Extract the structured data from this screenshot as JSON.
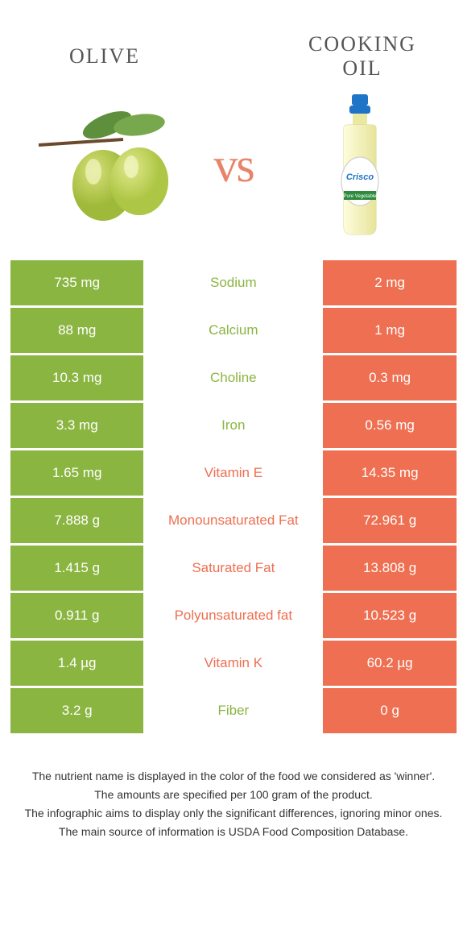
{
  "colors": {
    "left_bg": "#8bb541",
    "right_bg": "#ee6f51",
    "left_text": "#8bb541",
    "right_text": "#ee6f51",
    "vs": "#e8846a",
    "white": "#ffffff"
  },
  "header": {
    "left_title": "Olive",
    "right_title": "Cooking oil",
    "vs_label": "vs"
  },
  "rows": [
    {
      "left": "735 mg",
      "label": "Sodium",
      "right": "2 mg",
      "winner": "left"
    },
    {
      "left": "88 mg",
      "label": "Calcium",
      "right": "1 mg",
      "winner": "left"
    },
    {
      "left": "10.3 mg",
      "label": "Choline",
      "right": "0.3 mg",
      "winner": "left"
    },
    {
      "left": "3.3 mg",
      "label": "Iron",
      "right": "0.56 mg",
      "winner": "left"
    },
    {
      "left": "1.65 mg",
      "label": "Vitamin E",
      "right": "14.35 mg",
      "winner": "right"
    },
    {
      "left": "7.888 g",
      "label": "Monounsaturated Fat",
      "right": "72.961 g",
      "winner": "right"
    },
    {
      "left": "1.415 g",
      "label": "Saturated Fat",
      "right": "13.808 g",
      "winner": "right"
    },
    {
      "left": "0.911 g",
      "label": "Polyunsaturated fat",
      "right": "10.523 g",
      "winner": "right"
    },
    {
      "left": "1.4 µg",
      "label": "Vitamin K",
      "right": "60.2 µg",
      "winner": "right"
    },
    {
      "left": "3.2 g",
      "label": "Fiber",
      "right": "0 g",
      "winner": "left"
    }
  ],
  "footer": {
    "l1": "The nutrient name is displayed in the color of the food we considered as 'winner'.",
    "l2": "The amounts are specified per 100 gram of the product.",
    "l3": "The infographic aims to display only the significant differences, ignoring minor ones.",
    "l4": "The main source of information is USDA Food Composition Database."
  }
}
